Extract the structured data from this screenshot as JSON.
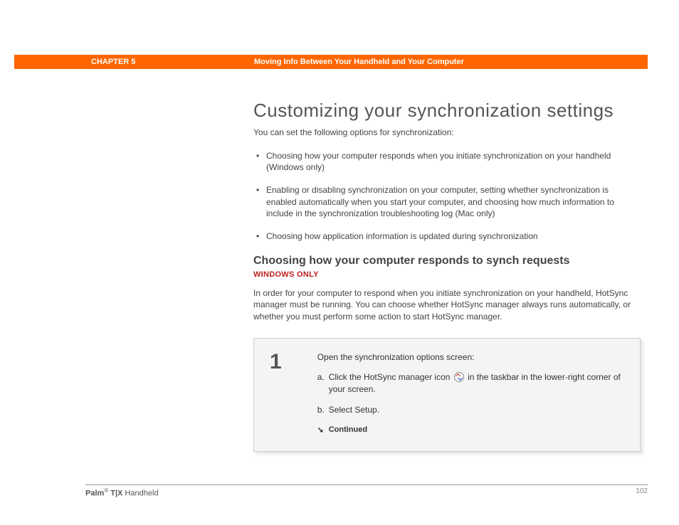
{
  "header": {
    "chapter_label": "CHAPTER 5",
    "chapter_title": "Moving Info Between Your Handheld and Your Computer",
    "bar_color": "#ff6600"
  },
  "main": {
    "h1": "Customizing your synchronization settings",
    "intro": "You can set the following options for synchronization:",
    "bullets": [
      "Choosing how your computer responds when you initiate synchronization on your handheld (Windows only)",
      "Enabling or disabling synchronization on your computer, setting whether synchronization is enabled automatically when you start your computer, and choosing how much information to include in the synchronization troubleshooting log (Mac only)",
      "Choosing how application information is updated during synchronization"
    ],
    "h2": "Choosing how your computer responds to synch requests",
    "platform_tag": "WINDOWS ONLY",
    "platform_tag_color": "#c02020",
    "para": "In order for your computer to respond when you initiate synchronization on your handheld, HotSync manager must be running. You can choose whether HotSync manager always runs automatically, or whether you must perform some action to start HotSync manager.",
    "step": {
      "num": "1",
      "title": "Open the synchronization options screen:",
      "a_prefix": "Click the HotSync manager icon ",
      "a_suffix": " in the taskbar in the lower-right corner of your screen.",
      "b": "Select Setup.",
      "continued": "Continued"
    },
    "step_box": {
      "background": "#f4f4f4",
      "border_color": "#d0d0d0"
    }
  },
  "footer": {
    "brand_bold": "Palm",
    "brand_reg": "®",
    "brand_model": " T|X",
    "brand_tail": " Handheld",
    "page": "102"
  }
}
